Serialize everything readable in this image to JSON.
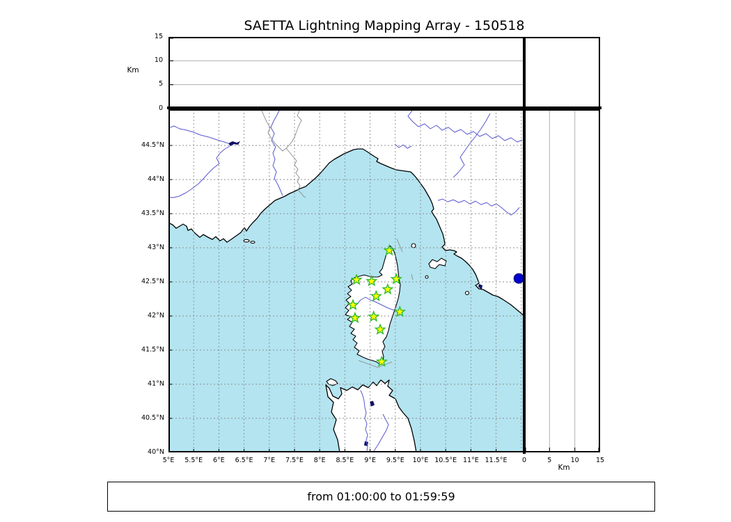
{
  "title": "SAETTA Lightning Mapping Array - 150518",
  "footer_text": "from 01:00:00 to 01:59:59",
  "altitude_axis": {
    "unit_label": "Km",
    "ticks_km": [
      0,
      5,
      10,
      15
    ],
    "grid_km": [
      5,
      10
    ],
    "max_km": 15
  },
  "map": {
    "lat_ticks": [
      {
        "label": "40°N",
        "value": 40
      },
      {
        "label": "40.5°N",
        "value": 40.5
      },
      {
        "label": "41°N",
        "value": 41
      },
      {
        "label": "41.5°N",
        "value": 41.5
      },
      {
        "label": "42°N",
        "value": 42
      },
      {
        "label": "42.5°N",
        "value": 42.5
      },
      {
        "label": "43°N",
        "value": 43
      },
      {
        "label": "43.5°N",
        "value": 43.5
      },
      {
        "label": "44°N",
        "value": 44
      },
      {
        "label": "44.5°N",
        "value": 44.5
      }
    ],
    "lon_ticks": [
      {
        "label": "5°E",
        "value": 5
      },
      {
        "label": "5.5°E",
        "value": 5.5
      },
      {
        "label": "6°E",
        "value": 6
      },
      {
        "label": "6.5°E",
        "value": 6.5
      },
      {
        "label": "7°E",
        "value": 7
      },
      {
        "label": "7.5°E",
        "value": 7.5
      },
      {
        "label": "8°E",
        "value": 8
      },
      {
        "label": "8.5°E",
        "value": 8.5
      },
      {
        "label": "9°E",
        "value": 9
      },
      {
        "label": "9.5°E",
        "value": 9.5
      },
      {
        "label": "10°E",
        "value": 10
      },
      {
        "label": "10.5°E",
        "value": 10.5
      },
      {
        "label": "11°E",
        "value": 11
      },
      {
        "label": "11.5°E",
        "value": 11.5
      }
    ],
    "extra_gridlines": {
      "lon": [
        12
      ],
      "lat": []
    },
    "colors": {
      "sea": "#b3e4f0",
      "land": "#ffffff",
      "coast": "#000000",
      "river": "#5757d0",
      "border": "#8a8a8a",
      "grid": "#8c8c8c",
      "lake": "#0f1066",
      "station_fill": "#ffff00",
      "station_edge": "#2db92d",
      "source_fill": "#0000cf",
      "source_edge": "#000070"
    },
    "stations": [
      {
        "lon": 9.38,
        "lat": 42.96
      },
      {
        "lon": 8.73,
        "lat": 42.53
      },
      {
        "lon": 9.03,
        "lat": 42.51
      },
      {
        "lon": 9.52,
        "lat": 42.54
      },
      {
        "lon": 9.35,
        "lat": 42.39
      },
      {
        "lon": 9.12,
        "lat": 42.29
      },
      {
        "lon": 8.66,
        "lat": 42.16
      },
      {
        "lon": 9.59,
        "lat": 42.06
      },
      {
        "lon": 8.7,
        "lat": 41.97
      },
      {
        "lon": 9.07,
        "lat": 41.99
      },
      {
        "lon": 9.2,
        "lat": 41.8
      },
      {
        "lon": 9.23,
        "lat": 41.33
      }
    ],
    "source_point": {
      "lon": 11.95,
      "lat": 42.55
    }
  }
}
